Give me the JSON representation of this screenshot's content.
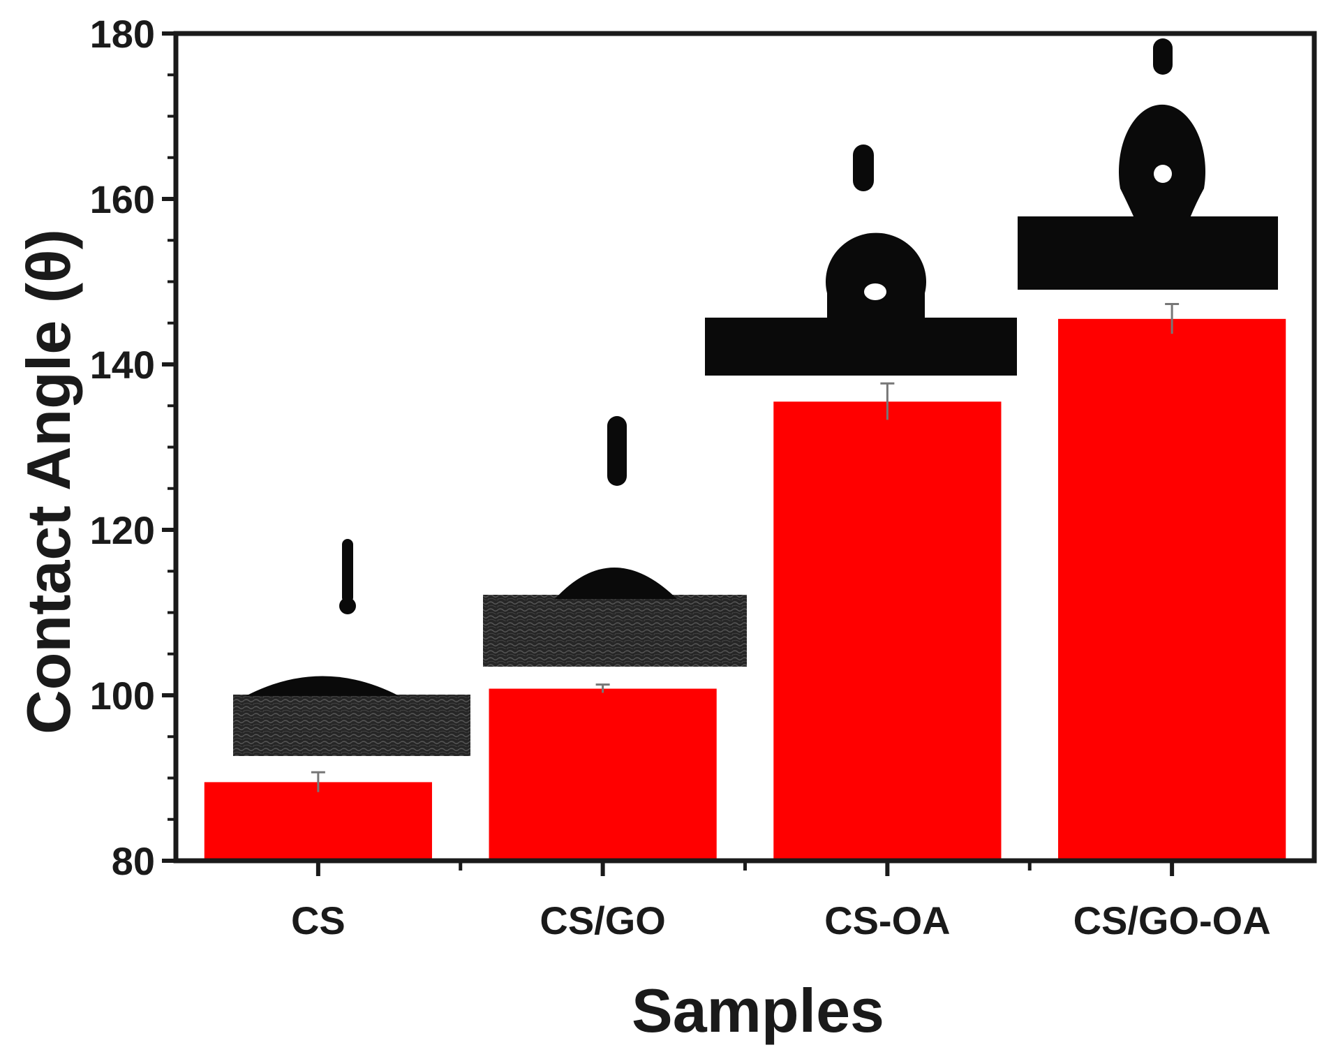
{
  "colors": {
    "bar": "#ff0000",
    "axis": "#1a1a1a",
    "inset_dark": "#0a0a0a",
    "substrate_rough": "#2a2a2a"
  },
  "chart_data": {
    "type": "bar",
    "title": "",
    "xlabel": "Samples",
    "ylabel": "Contact Angle (θ)",
    "categories": [
      "CS",
      "CS/GO",
      "CS-OA",
      "CS/GO-OA"
    ],
    "values": [
      89.5,
      100.8,
      135.5,
      145.5
    ],
    "errors": [
      1.2,
      0.5,
      2.2,
      1.8
    ],
    "ylim": [
      80,
      180
    ],
    "yticks": [
      80,
      100,
      120,
      140,
      160,
      180
    ],
    "grid": false,
    "legend": "none",
    "insets": [
      {
        "category": "CS",
        "type": "droplet-photo",
        "description_name": "cs-droplet-inset"
      },
      {
        "category": "CS/GO",
        "type": "droplet-photo",
        "description_name": "cs-go-droplet-inset"
      },
      {
        "category": "CS-OA",
        "type": "droplet-photo",
        "description_name": "cs-oa-droplet-inset"
      },
      {
        "category": "CS/GO-OA",
        "type": "droplet-photo",
        "description_name": "cs-go-oa-droplet-inset"
      }
    ]
  }
}
